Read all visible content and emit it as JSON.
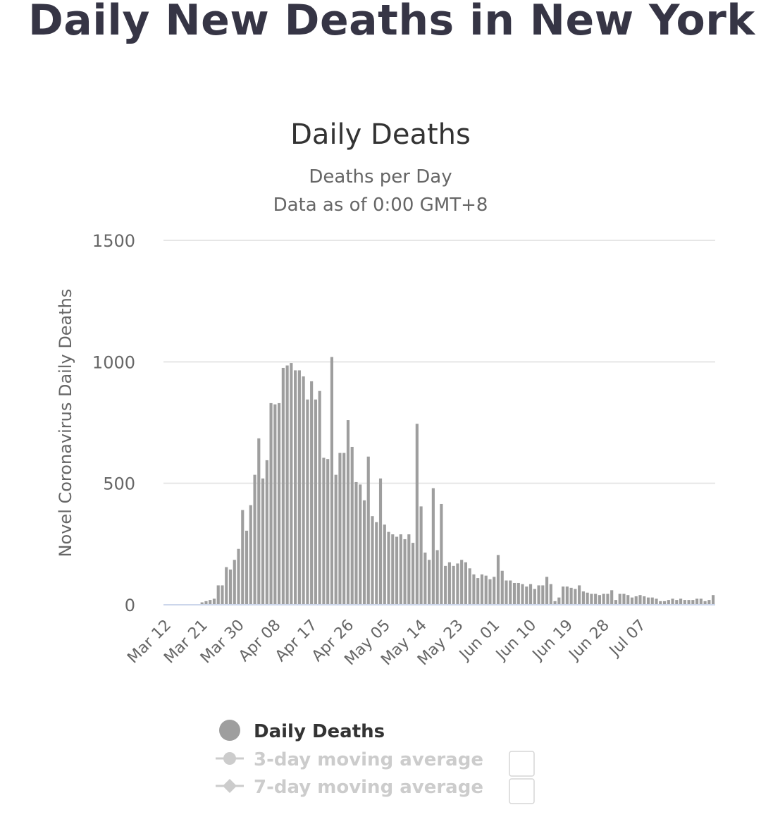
{
  "page_title": "Daily New Deaths in New York",
  "chart_data": {
    "type": "bar",
    "title": "Daily Deaths",
    "subtitle_lines": [
      "Deaths per Day",
      "Data as of 0:00 GMT+8"
    ],
    "ylabel": "Novel Coronavirus Daily Deaths",
    "xlabel": "",
    "ylim": [
      0,
      1500
    ],
    "yticks": [
      0,
      500,
      1000,
      1500
    ],
    "start_date": "Mar 12",
    "xtick_labels": [
      "Mar 12",
      "Mar 21",
      "Mar 30",
      "Apr 08",
      "Apr 17",
      "Apr 26",
      "May 05",
      "May 14",
      "May 23",
      "Jun 01",
      "Jun 10",
      "Jun 19",
      "Jun 28",
      "Jul 07"
    ],
    "xtick_interval_days": 9,
    "grid": true,
    "legend_position": "bottom",
    "series": [
      {
        "name": "Daily Deaths",
        "color": "#9e9e9e",
        "values": [
          0,
          0,
          0,
          0,
          0,
          0,
          0,
          0,
          0,
          10,
          15,
          20,
          25,
          80,
          80,
          155,
          145,
          185,
          230,
          390,
          305,
          410,
          535,
          685,
          520,
          595,
          830,
          825,
          830,
          975,
          985,
          995,
          965,
          965,
          940,
          845,
          920,
          845,
          880,
          605,
          600,
          1020,
          535,
          625,
          625,
          760,
          650,
          505,
          495,
          430,
          610,
          365,
          340,
          520,
          330,
          300,
          290,
          280,
          290,
          270,
          290,
          255,
          745,
          405,
          215,
          185,
          480,
          225,
          415,
          160,
          175,
          160,
          170,
          185,
          175,
          150,
          125,
          110,
          125,
          120,
          105,
          115,
          205,
          140,
          100,
          100,
          90,
          90,
          85,
          75,
          85,
          65,
          80,
          80,
          115,
          85,
          15,
          30,
          75,
          75,
          70,
          65,
          80,
          55,
          50,
          45,
          45,
          40,
          45,
          45,
          60,
          20,
          45,
          45,
          40,
          30,
          35,
          40,
          35,
          30,
          30,
          25,
          15,
          15,
          20,
          25,
          20,
          25,
          20,
          20,
          20,
          25,
          25,
          15,
          20,
          40
        ]
      },
      {
        "name": "3-day moving average",
        "color": "#cccccc",
        "values": []
      },
      {
        "name": "7-day moving average",
        "color": "#cccccc",
        "values": []
      }
    ]
  },
  "colors": {
    "bar": "#9e9e9e",
    "axis_line": "#ccd6eb",
    "grid": "#e6e6e6",
    "legend_active": "#333333",
    "legend_inactive": "#cccccc"
  }
}
